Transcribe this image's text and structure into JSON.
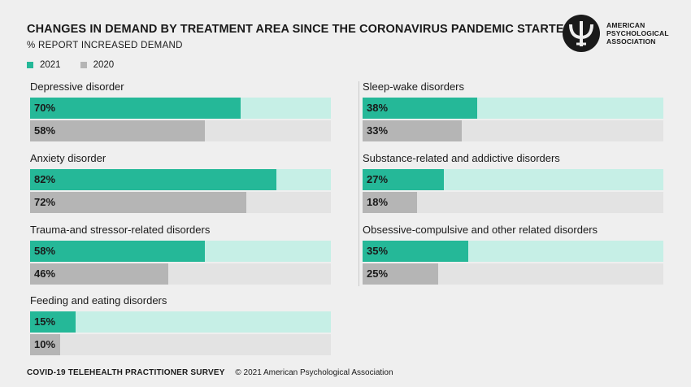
{
  "header": {
    "title": "CHANGES IN DEMAND BY TREATMENT AREA SINCE THE CORONAVIRUS PANDEMIC STARTED",
    "subtitle": "% REPORT INCREASED DEMAND"
  },
  "logo": {
    "line1": "AMERICAN",
    "line2": "PSYCHOLOGICAL",
    "line3": "ASSOCIATION"
  },
  "colors": {
    "fill_2021": "#25b898",
    "track_2021": "#c6efe6",
    "fill_2020": "#b5b5b5",
    "track_2020": "#e3e3e3"
  },
  "footer": {
    "survey": "COVID-19 TELEHEALTH PRACTITIONER SURVEY",
    "copyright": "© 2021 American Psychological Association"
  },
  "chart_data": {
    "type": "bar",
    "title": "CHANGES IN DEMAND BY TREATMENT AREA SINCE THE CORONAVIRUS PANDEMIC STARTED",
    "subtitle": "% REPORT INCREASED DEMAND",
    "ylim": [
      0,
      100
    ],
    "legend": [
      "2021",
      "2020"
    ],
    "legend_position": "top-left",
    "categories": [
      "Depressive disorder",
      "Anxiety disorder",
      "Trauma-and stressor-related disorders",
      "Feeding and eating disorders",
      "Sleep-wake disorders",
      "Substance-related and addictive disorders",
      "Obsessive-compulsive and other related disorders"
    ],
    "series": [
      {
        "name": "2021",
        "values": [
          70,
          82,
          58,
          15,
          38,
          27,
          35
        ],
        "labels": [
          "70%",
          "82%",
          "58%",
          "15%",
          "38%",
          "27%",
          "35%"
        ]
      },
      {
        "name": "2020",
        "values": [
          58,
          72,
          46,
          10,
          33,
          18,
          25
        ],
        "labels": [
          "58%",
          "72%",
          "46%",
          "10%",
          "33%",
          "18%",
          "25%"
        ]
      }
    ]
  }
}
